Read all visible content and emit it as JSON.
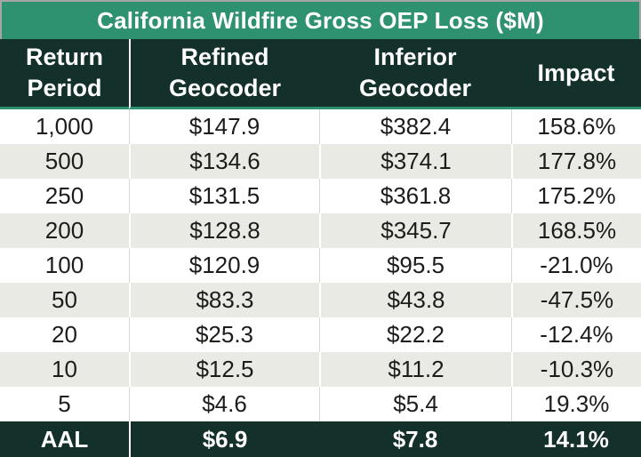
{
  "title": "California Wildfire Gross OEP Loss ($M)",
  "header": {
    "cells": [
      {
        "line1": "Return",
        "line2": "Period"
      },
      {
        "line1": "Refined",
        "line2": "Geocoder"
      },
      {
        "line1": "Inferior",
        "line2": "Geocoder"
      },
      {
        "line1": "Impact",
        "line2": ""
      }
    ]
  },
  "rows": [
    {
      "period": "1,000",
      "refined": "$147.9",
      "inferior": "$382.4",
      "impact": "158.6%"
    },
    {
      "period": "500",
      "refined": "$134.6",
      "inferior": "$374.1",
      "impact": "177.8%"
    },
    {
      "period": "250",
      "refined": "$131.5",
      "inferior": "$361.8",
      "impact": "175.2%"
    },
    {
      "period": "200",
      "refined": "$128.8",
      "inferior": "$345.7",
      "impact": "168.5%"
    },
    {
      "period": "100",
      "refined": "$120.9",
      "inferior": "$95.5",
      "impact": "-21.0%"
    },
    {
      "period": "50",
      "refined": "$83.3",
      "inferior": "$43.8",
      "impact": "-47.5%"
    },
    {
      "period": "20",
      "refined": "$25.3",
      "inferior": "$22.2",
      "impact": "-12.4%"
    },
    {
      "period": "10",
      "refined": "$12.5",
      "inferior": "$11.2",
      "impact": "-10.3%"
    },
    {
      "period": "5",
      "refined": "$4.6",
      "inferior": "$5.4",
      "impact": "19.3%"
    }
  ],
  "footer": {
    "label": "AAL",
    "refined": "$6.9",
    "inferior": "$7.8",
    "impact": "14.1%"
  },
  "colors": {
    "title_bar": "#2E9170",
    "header_bg": "#13302A",
    "row_alt": "#EAEAE5",
    "row_plain": "#FFFFFF",
    "accent_line": "#2E9170",
    "data_text": "#1C1C1A",
    "outer_border": "#A6A6A6"
  },
  "chart_data": {
    "type": "table",
    "title": "California Wildfire Gross OEP Loss ($M)",
    "columns": [
      "Return Period",
      "Refined Geocoder",
      "Inferior Geocoder",
      "Impact"
    ],
    "rows": [
      [
        "1,000",
        147.9,
        382.4,
        "158.6%"
      ],
      [
        "500",
        134.6,
        374.1,
        "177.8%"
      ],
      [
        "250",
        131.5,
        361.8,
        "175.2%"
      ],
      [
        "200",
        128.8,
        345.7,
        "168.5%"
      ],
      [
        "100",
        120.9,
        95.5,
        "-21.0%"
      ],
      [
        "50",
        83.3,
        43.8,
        "-47.5%"
      ],
      [
        "20",
        25.3,
        22.2,
        "-12.4%"
      ],
      [
        "10",
        12.5,
        11.2,
        "-10.3%"
      ],
      [
        "5",
        4.6,
        5.4,
        "19.3%"
      ],
      [
        "AAL",
        6.9,
        7.8,
        "14.1%"
      ]
    ]
  }
}
